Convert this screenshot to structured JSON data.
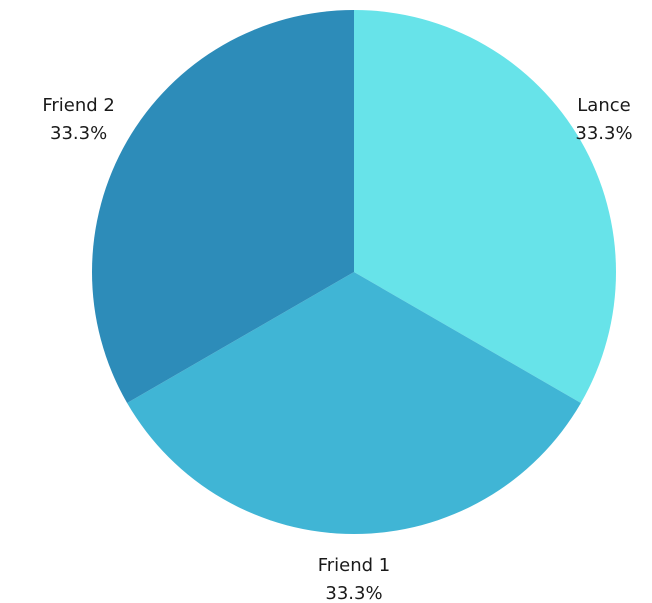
{
  "chart_data": {
    "type": "pie",
    "title": "",
    "slices": [
      {
        "label": "Lance",
        "value": 33.3,
        "display": "33.3%",
        "color": "#67E3E9"
      },
      {
        "label": "Friend 1",
        "value": 33.3,
        "display": "33.3%",
        "color": "#40B5D5"
      },
      {
        "label": "Friend 2",
        "value": 33.3,
        "display": "33.3%",
        "color": "#2D8CB9"
      }
    ],
    "start_angle_deg": 0,
    "direction": "clockwise",
    "legend": "none",
    "labels": "outside"
  }
}
